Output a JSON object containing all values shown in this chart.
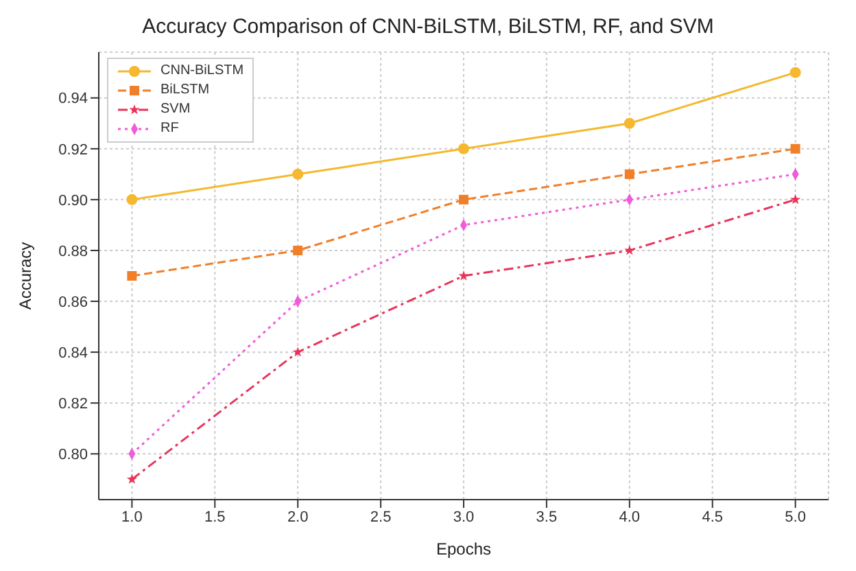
{
  "chart_data": {
    "type": "line",
    "title": "Accuracy Comparison of CNN-BiLSTM, BiLSTM, RF, and SVM",
    "xlabel": "Epochs",
    "ylabel": "Accuracy",
    "x": [
      1,
      2,
      3,
      4,
      5
    ],
    "series": [
      {
        "name": "CNN-BiLSTM",
        "color": "#f5b82e",
        "values": [
          0.9,
          0.91,
          0.92,
          0.93,
          0.95
        ],
        "marker": "circle",
        "line_style": "solid"
      },
      {
        "name": "BiLSTM",
        "color": "#f07f2a",
        "values": [
          0.87,
          0.88,
          0.9,
          0.91,
          0.92
        ],
        "marker": "square",
        "line_style": "dashed"
      },
      {
        "name": "SVM",
        "color": "#e8345a",
        "values": [
          0.79,
          0.84,
          0.87,
          0.88,
          0.9
        ],
        "marker": "star",
        "line_style": "dashdot"
      },
      {
        "name": "RF",
        "color": "#f05bd8",
        "values": [
          0.8,
          0.86,
          0.89,
          0.9,
          0.91
        ],
        "marker": "diamond",
        "line_style": "dotted"
      }
    ],
    "xlim": [
      0.8,
      5.2
    ],
    "xticks": [
      {
        "value": 1,
        "label": "1.0"
      },
      {
        "value": 1.5,
        "label": "1.5"
      },
      {
        "value": 2,
        "label": "2.0"
      },
      {
        "value": 2.5,
        "label": "2.5"
      },
      {
        "value": 3,
        "label": "3.0"
      },
      {
        "value": 3.5,
        "label": "3.5"
      },
      {
        "value": 4,
        "label": "4.0"
      },
      {
        "value": 4.5,
        "label": "4.5"
      },
      {
        "value": 5,
        "label": "5.0"
      }
    ],
    "ylim": [
      0.782,
      0.958
    ],
    "yticks": [
      {
        "value": 0.8,
        "label": "0.80"
      },
      0.82,
      0.84,
      0.86,
      0.88,
      {
        "value": 0.9,
        "label": "0.90"
      },
      0.92,
      0.94
    ],
    "grid": true,
    "legend": "top left"
  }
}
